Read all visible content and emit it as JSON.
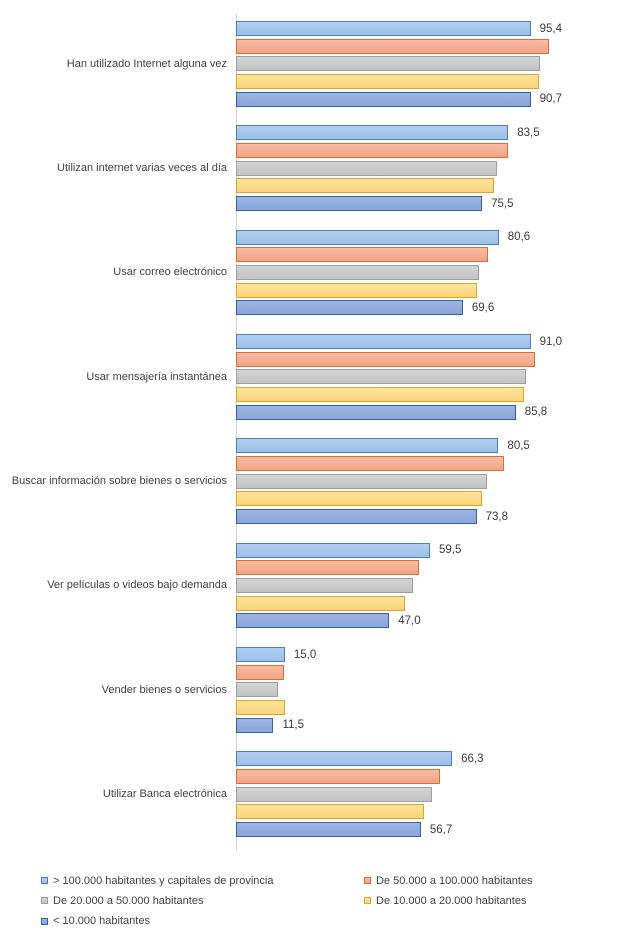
{
  "chart_data": {
    "type": "bar",
    "orientation": "horizontal",
    "title": "",
    "xlabel": "",
    "ylabel": "",
    "xlim": [
      0,
      100
    ],
    "grid": false,
    "legend_position": "bottom-left",
    "categories": [
      "Han utilizado Internet alguna vez",
      "Utilizan internet varias veces al día",
      "Usar correo electrónico",
      "Usar mensajería instantánea",
      "Buscar información sobre bienes o servicios",
      "Ver películas o videos bajo demanda",
      "Vender bienes o servicios",
      "Utilizar Banca electrónica"
    ],
    "series": [
      {
        "name": "> 100.000 habitantes y capitales de provincia",
        "values": [
          95.4,
          83.5,
          80.6,
          91.0,
          80.5,
          59.5,
          15.0,
          66.3
        ]
      },
      {
        "name": "De 50.000 a 100.000 habitantes",
        "values": [
          95.9,
          83.4,
          77.4,
          91.8,
          82.2,
          56.2,
          14.6,
          62.5
        ]
      },
      {
        "name": "De 20.000 a 50.000 habitantes",
        "values": [
          93.4,
          80.2,
          74.5,
          88.9,
          77.1,
          54.2,
          13.0,
          60.0
        ]
      },
      {
        "name": "De 10.000 a 20.000 habitantes",
        "values": [
          93.0,
          79.0,
          73.9,
          88.4,
          75.4,
          51.9,
          15.1,
          57.8
        ]
      },
      {
        "name": "< 10.000 habitantes",
        "values": [
          90.7,
          75.5,
          69.6,
          85.8,
          73.8,
          47.0,
          11.5,
          56.7
        ]
      }
    ],
    "data_labels": {
      "shown_for": [
        "first-series",
        "last-series"
      ],
      "values": [
        [
          "95,4",
          "90,7"
        ],
        [
          "83,5",
          "75,5"
        ],
        [
          "80,6",
          "69,6"
        ],
        [
          "91,0",
          "85,8"
        ],
        [
          "80,5",
          "73,8"
        ],
        [
          "59,5",
          "47,0"
        ],
        [
          "15,0",
          "11,5"
        ],
        [
          "66,3",
          "56,7"
        ]
      ]
    }
  },
  "series_colors": [
    {
      "fill_top": "#afcff0",
      "fill_bottom": "#9bc0e6",
      "border": "#4a7ebd"
    },
    {
      "fill_top": "#f8bca4",
      "fill_bottom": "#f2a385",
      "border": "#dd6e31"
    },
    {
      "fill_top": "#d4d4d4",
      "fill_bottom": "#c3c3c3",
      "border": "#9e9e9e"
    },
    {
      "fill_top": "#ffe49a",
      "fill_bottom": "#f8d47d",
      "border": "#e2a421"
    },
    {
      "fill_top": "#9db5e2",
      "fill_bottom": "#8aa5d8",
      "border": "#3560ad"
    }
  ],
  "legend": {
    "items": [
      {
        "label": "> 100.000 habitantes y capitales de provincia",
        "series": 0,
        "col": 0,
        "row": 0
      },
      {
        "label": "De 50.000 a 100.000 habitantes",
        "series": 1,
        "col": 1,
        "row": 0
      },
      {
        "label": "De 20.000 a 50.000 habitantes",
        "series": 2,
        "col": 0,
        "row": 1
      },
      {
        "label": "De 10.000 a 20.000 habitantes",
        "series": 3,
        "col": 1,
        "row": 1
      },
      {
        "label": "< 10.000 habitantes",
        "series": 4,
        "col": 0,
        "row": 2
      }
    ]
  }
}
